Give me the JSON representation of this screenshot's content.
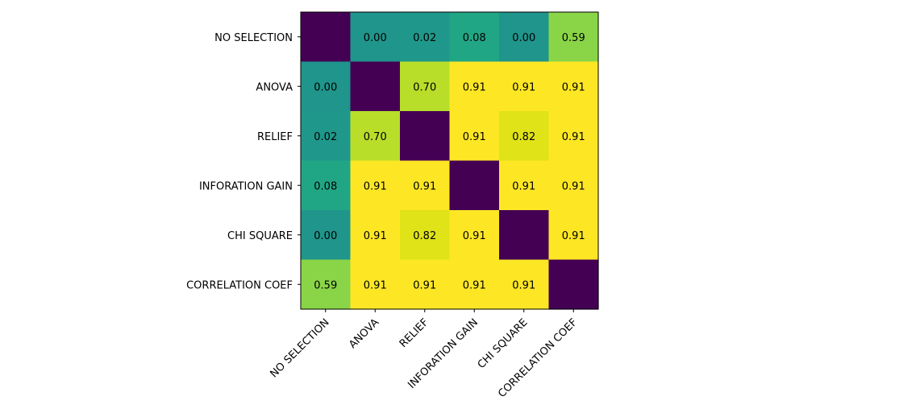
{
  "chart_data": {
    "type": "heatmap",
    "title": "",
    "xlabel": "",
    "ylabel": "",
    "x_categories": [
      "NO SELECTION",
      "ANOVA",
      "RELIEF",
      "INFORATION GAIN",
      "CHI SQUARE",
      "CORRELATION COEF"
    ],
    "y_categories": [
      "NO SELECTION",
      "ANOVA",
      "RELIEF",
      "INFORATION GAIN",
      "CHI SQUARE",
      "CORRELATION COEF"
    ],
    "values": [
      [
        null,
        0.0,
        0.02,
        0.08,
        0.0,
        0.59
      ],
      [
        0.0,
        null,
        0.7,
        0.91,
        0.91,
        0.91
      ],
      [
        0.02,
        0.7,
        null,
        0.91,
        0.82,
        0.91
      ],
      [
        0.08,
        0.91,
        0.91,
        null,
        0.91,
        0.91
      ],
      [
        0.0,
        0.91,
        0.82,
        0.91,
        null,
        0.91
      ],
      [
        0.59,
        0.91,
        0.91,
        0.91,
        0.91,
        null
      ]
    ],
    "colormap": "viridis",
    "diagonal_color": "#440154",
    "cell_colors": [
      [
        "#440154",
        "#1f958b",
        "#1f988b",
        "#21a685",
        "#1f958b",
        "#8ad547"
      ],
      [
        "#1f958b",
        "#440154",
        "#b8de29",
        "#fde725",
        "#fde725",
        "#fde725"
      ],
      [
        "#1f988b",
        "#b8de29",
        "#440154",
        "#fde725",
        "#dfe318",
        "#fde725"
      ],
      [
        "#21a685",
        "#fde725",
        "#fde725",
        "#440154",
        "#fde725",
        "#fde725"
      ],
      [
        "#1f958b",
        "#fde725",
        "#dfe318",
        "#fde725",
        "#440154",
        "#fde725"
      ],
      [
        "#8ad547",
        "#fde725",
        "#fde725",
        "#fde725",
        "#fde725",
        "#440154"
      ]
    ],
    "value_format": "2-decimal",
    "grid": false,
    "colorbar": false
  }
}
